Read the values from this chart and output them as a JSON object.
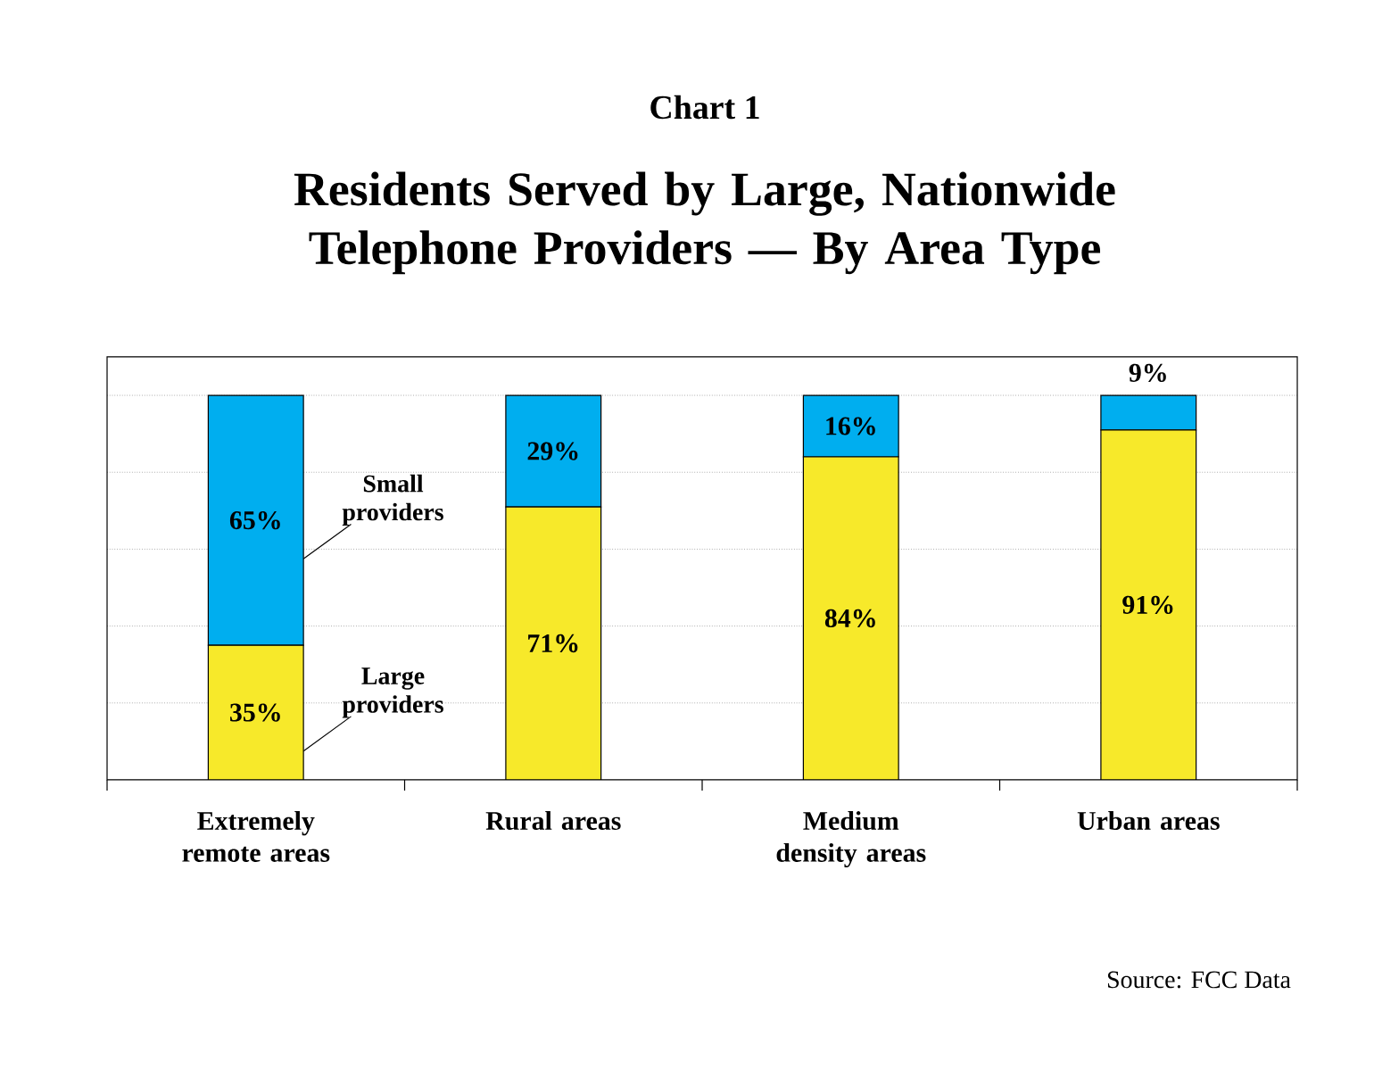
{
  "chart_data": {
    "type": "bar",
    "stacked": true,
    "title": "Chart 1",
    "subtitle": "Residents Served by Large, Nationwide Telephone Providers — By Area Type",
    "categories": [
      "Extremely remote areas",
      "Rural areas",
      "Medium density areas",
      "Urban areas"
    ],
    "series": [
      {
        "name": "Large providers",
        "color": "#f7e92a",
        "values": [
          35,
          71,
          84,
          91
        ],
        "value_labels": [
          "35%",
          "71%",
          "84%",
          "91%"
        ]
      },
      {
        "name": "Small providers",
        "color": "#00aeef",
        "values": [
          65,
          29,
          16,
          9
        ],
        "value_labels": [
          "65%",
          "29%",
          "16%",
          "9%"
        ]
      }
    ],
    "ylim": [
      0,
      110
    ],
    "yticks": [
      {
        "value": 20,
        "label": null
      },
      {
        "value": 40,
        "label": null
      },
      {
        "value": 60,
        "label": null
      },
      {
        "value": 80,
        "label": null
      },
      {
        "value": 100,
        "label": null
      }
    ],
    "grid": "y",
    "tick_labels": "x",
    "annotations": [
      "Source: FCC Data"
    ]
  }
}
